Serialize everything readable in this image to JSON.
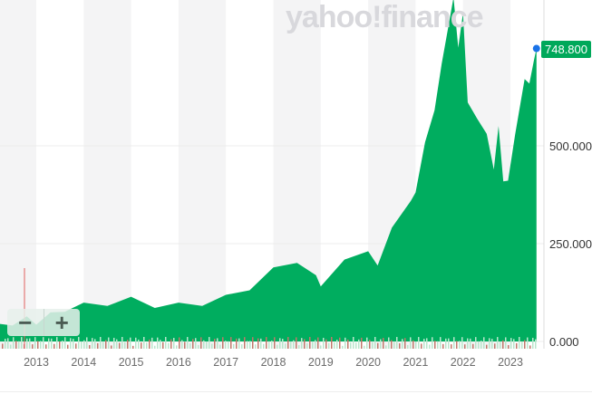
{
  "watermark": "yahoo!finance",
  "zoom_out_label": "−",
  "zoom_in_label": "+",
  "current_price_label": "748.800",
  "chart_data": {
    "type": "area",
    "title": "",
    "xlabel": "",
    "ylabel": "",
    "x_ticks": [
      "2013",
      "2014",
      "2015",
      "2016",
      "2017",
      "2018",
      "2019",
      "2020",
      "2021",
      "2022",
      "2023"
    ],
    "y_ticks": [
      "0.000",
      "250.000",
      "500.000"
    ],
    "ylim": [
      0,
      870
    ],
    "xlim": [
      2012.23,
      2023.82
    ],
    "grid": true,
    "color": "#00ad5f",
    "x": [
      2012.23,
      2012.5,
      2012.8,
      2013,
      2013.3,
      2013.6,
      2014,
      2014.5,
      2015,
      2015.5,
      2016,
      2016.5,
      2017,
      2017.5,
      2018,
      2018.5,
      2018.9,
      2019,
      2019.5,
      2020,
      2020.2,
      2020.5,
      2020.9,
      2021,
      2021.2,
      2021.4,
      2021.55,
      2021.7,
      2021.8,
      2021.9,
      2022,
      2022.1,
      2022.3,
      2022.5,
      2022.65,
      2022.75,
      2022.85,
      2022.95,
      2023.1,
      2023.3,
      2023.4,
      2023.5,
      2023.55
    ],
    "values": [
      45,
      50,
      55,
      52,
      65,
      85,
      90,
      100,
      105,
      95,
      90,
      100,
      110,
      140,
      180,
      210,
      160,
      150,
      200,
      240,
      185,
      300,
      350,
      390,
      500,
      600,
      700,
      820,
      870,
      760,
      830,
      620,
      560,
      540,
      430,
      560,
      400,
      420,
      520,
      680,
      650,
      730,
      748.8
    ],
    "last_value": 748.8
  }
}
